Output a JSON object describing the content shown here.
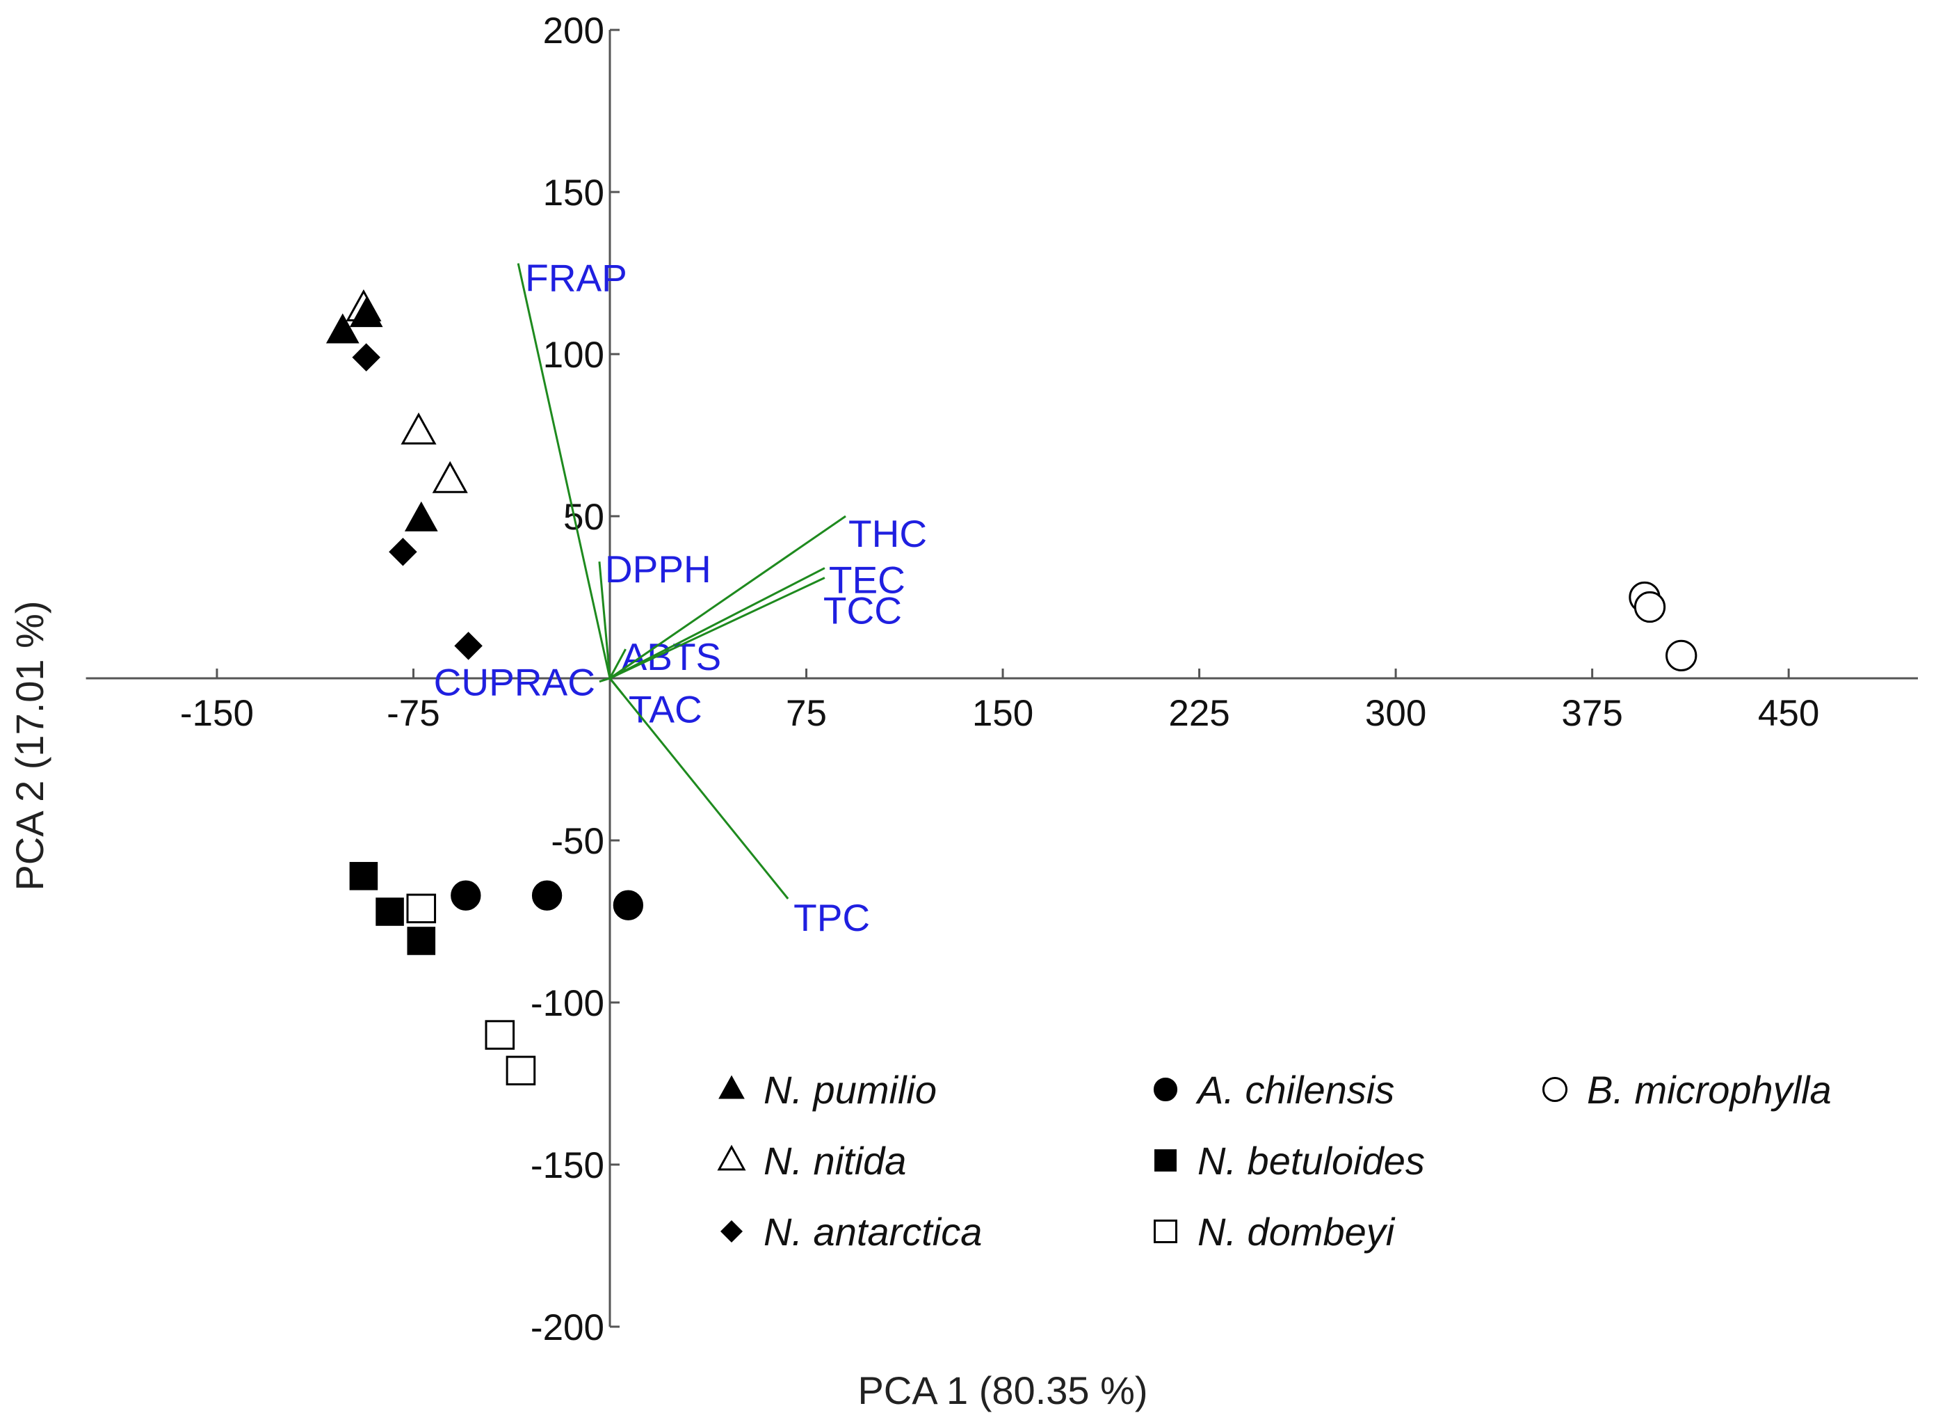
{
  "chart_data": {
    "type": "scatter",
    "subtype": "pca-biplot",
    "title": "",
    "xlabel": "PCA 1 (80.35 %)",
    "ylabel": "PCA 2 (17.01 %)",
    "xlim": [
      -200,
      500
    ],
    "ylim": [
      -200,
      200
    ],
    "xticks": [
      -150,
      -75,
      75,
      150,
      225,
      300,
      375,
      450
    ],
    "yticks": [
      200,
      150,
      100,
      50,
      -50,
      -100,
      -150,
      -200
    ],
    "grid": false,
    "legend_position": "bottom-right",
    "loadings": [
      {
        "label": "FRAP",
        "x": -35,
        "y": 128
      },
      {
        "label": "DPPH",
        "x": -4,
        "y": 36
      },
      {
        "label": "ABTS",
        "x": 6,
        "y": 9
      },
      {
        "label": "THC",
        "x": 90,
        "y": 50
      },
      {
        "label": "TEC",
        "x": 82,
        "y": 34
      },
      {
        "label": "TCC",
        "x": 82,
        "y": 31
      },
      {
        "label": "CUPRAC",
        "x": -4,
        "y": -1
      },
      {
        "label": "TAC",
        "x": 5,
        "y": -5
      },
      {
        "label": "TPC",
        "x": 68,
        "y": -68
      }
    ],
    "series": [
      {
        "name": "N. pumilio",
        "marker": "triangle-filled",
        "points": [
          [
            -102,
            107
          ],
          [
            -93,
            112
          ],
          [
            -72,
            49
          ]
        ]
      },
      {
        "name": "N. nitida",
        "marker": "triangle-open",
        "points": [
          [
            -94,
            114
          ],
          [
            -73,
            76
          ],
          [
            -61,
            61
          ]
        ]
      },
      {
        "name": "N. antarctica",
        "marker": "diamond-filled",
        "points": [
          [
            -93,
            99
          ],
          [
            -79,
            39
          ],
          [
            -54,
            10
          ]
        ]
      },
      {
        "name": "A. chilensis",
        "marker": "circle-filled",
        "points": [
          [
            -55,
            -67
          ],
          [
            -24,
            -67
          ],
          [
            7,
            -70
          ]
        ]
      },
      {
        "name": "N. betuloides",
        "marker": "square-filled",
        "points": [
          [
            -94,
            -61
          ],
          [
            -84,
            -72
          ],
          [
            -72,
            -81
          ]
        ]
      },
      {
        "name": "N. dombeyi",
        "marker": "square-open",
        "points": [
          [
            -72,
            -71
          ],
          [
            -42,
            -110
          ],
          [
            -34,
            -121
          ]
        ]
      },
      {
        "name": "B. microphylla",
        "marker": "circle-open",
        "points": [
          [
            395,
            25
          ],
          [
            397,
            22
          ],
          [
            409,
            7
          ]
        ]
      }
    ]
  },
  "colors": {
    "loading_line": "#1e8a1e",
    "loading_label": "#1f1fe0",
    "axis": "#555555",
    "marker": "#000000"
  }
}
